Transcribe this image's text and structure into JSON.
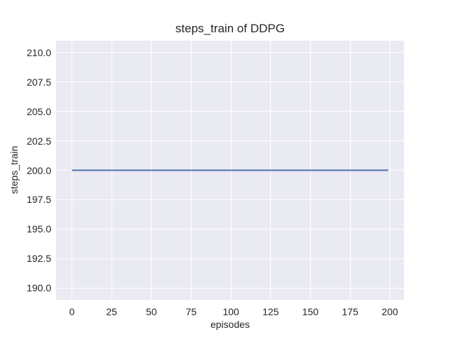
{
  "chart_data": {
    "type": "line",
    "title": "steps_train of DDPG",
    "xlabel": "episodes",
    "ylabel": "steps_train",
    "xlim": [
      -9.95,
      208.95
    ],
    "ylim": [
      189.0,
      211.0
    ],
    "x_tick_values": [
      0,
      25,
      50,
      75,
      100,
      125,
      150,
      175,
      200
    ],
    "x_tick_labels": [
      "0",
      "25",
      "50",
      "75",
      "100",
      "125",
      "150",
      "175",
      "200"
    ],
    "y_tick_values": [
      190.0,
      192.5,
      195.0,
      197.5,
      200.0,
      202.5,
      205.0,
      207.5,
      210.0
    ],
    "y_tick_labels": [
      "190.0",
      "192.5",
      "195.0",
      "197.5",
      "200.0",
      "202.5",
      "205.0",
      "207.5",
      "210.0"
    ],
    "grid": true,
    "legend_position": "none",
    "colors": {
      "figure_background": "#FFFFFF",
      "plot_background": "#EAEAF2",
      "grid": "#FFFFFF",
      "text": "#262626",
      "line": "#4C72B0"
    },
    "series": [
      {
        "name": "steps_train",
        "x": [
          0,
          199
        ],
        "y": [
          200,
          200
        ]
      }
    ]
  }
}
